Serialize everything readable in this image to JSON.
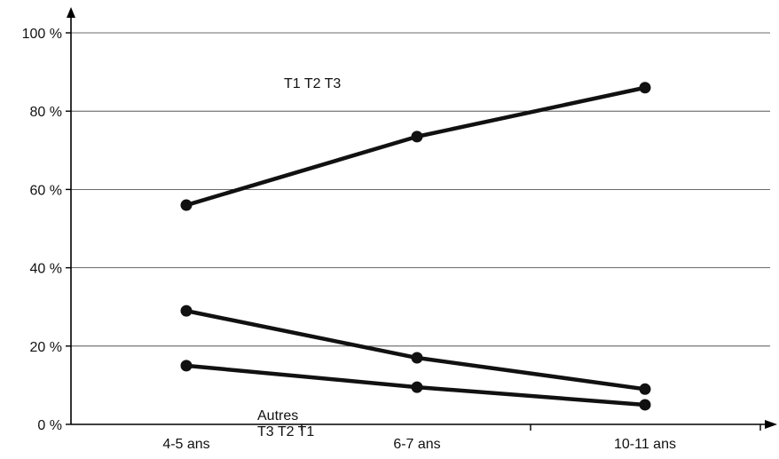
{
  "chart_data": {
    "type": "line",
    "categories": [
      "4-5 ans",
      "6-7 ans",
      "10-11 ans"
    ],
    "y_ticks": [
      "0 %",
      "20 %",
      "40 %",
      "60 %",
      "80 %",
      "100 %"
    ],
    "ylim": [
      0,
      100
    ],
    "grid": true,
    "series": [
      {
        "name": "T1 T2 T3",
        "values": [
          56,
          73.5,
          86
        ]
      },
      {
        "name": "Autres",
        "values": [
          29,
          17,
          9
        ]
      },
      {
        "name": "T3 T2 T1",
        "values": [
          15,
          9.5,
          5
        ]
      }
    ]
  }
}
